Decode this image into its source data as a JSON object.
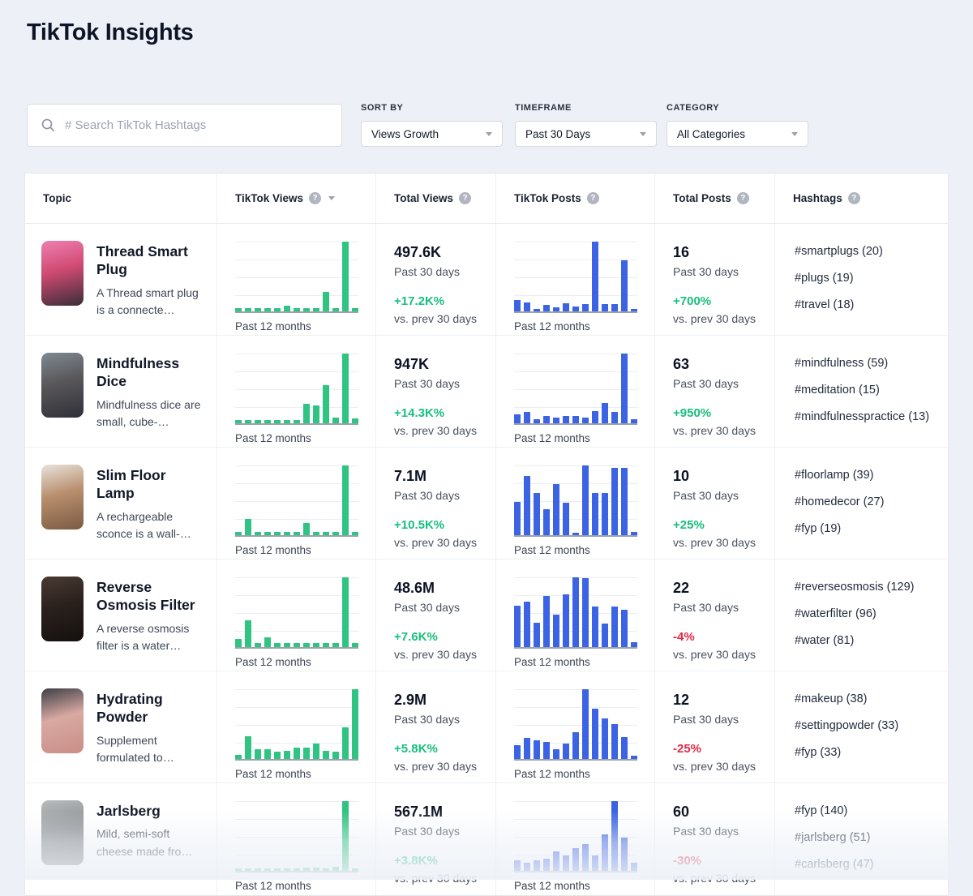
{
  "page": {
    "title": "TikTok Insights"
  },
  "search": {
    "placeholder": "# Search TikTok Hashtags"
  },
  "filters": {
    "sort_by": {
      "label": "SORT BY",
      "value": "Views Growth"
    },
    "timeframe": {
      "label": "TIMEFRAME",
      "value": "Past 30 Days"
    },
    "category": {
      "label": "CATEGORY",
      "value": "All Categories"
    }
  },
  "colors": {
    "views_bar_green": "#2fc481",
    "posts_bar_blue": "#3b63e3",
    "trend_up": "#17bf7d",
    "trend_down": "#e02b44"
  },
  "table": {
    "columns": [
      {
        "label": "Topic"
      },
      {
        "label": "TikTok Views"
      },
      {
        "label": "Total Views"
      },
      {
        "label": "TikTok Posts"
      },
      {
        "label": "Total Posts"
      },
      {
        "label": "Hashtags"
      }
    ],
    "chart_caption": "Past 12 months",
    "period_label": "Past 30 days",
    "vs_label": "vs. prev 30 days",
    "rows": [
      {
        "topic": {
          "title": "Thread Smart Plug",
          "description": "A Thread smart plug is a connecte…"
        },
        "thumb": [
          "#ee7fb1",
          "#d04a72",
          "#3a2d38"
        ],
        "views_chart": [
          5,
          5,
          5,
          5,
          5,
          8,
          5,
          5,
          5,
          28,
          5,
          100,
          5
        ],
        "total_views": {
          "value": "497.6K",
          "change": "+17.2K%",
          "trend": "up"
        },
        "posts_chart": [
          16,
          13,
          4,
          9,
          6,
          12,
          7,
          10,
          100,
          10,
          11,
          73,
          4
        ],
        "total_posts": {
          "value": "16",
          "change": "+700%",
          "trend": "up"
        },
        "hashtags": [
          {
            "tag": "#smartplugs",
            "count": "20"
          },
          {
            "tag": "#plugs",
            "count": "19"
          },
          {
            "tag": "#travel",
            "count": "18"
          }
        ]
      },
      {
        "topic": {
          "title": "Mindfulness Dice",
          "description": "Mindfulness dice are small, cube-…"
        },
        "thumb": [
          "#7e8a92",
          "#59575a",
          "#2f3038"
        ],
        "views_chart": [
          5,
          5,
          5,
          5,
          5,
          5,
          5,
          28,
          26,
          55,
          8,
          100,
          7
        ],
        "total_views": {
          "value": "947K",
          "change": "+14.3K%",
          "trend": "up"
        },
        "posts_chart": [
          13,
          16,
          6,
          11,
          8,
          10,
          10,
          8,
          18,
          29,
          16,
          100,
          6
        ],
        "total_posts": {
          "value": "63",
          "change": "+950%",
          "trend": "up"
        },
        "hashtags": [
          {
            "tag": "#mindfulness",
            "count": "59"
          },
          {
            "tag": "#meditation",
            "count": "15"
          },
          {
            "tag": "#mindfulnesspractice",
            "count": "13"
          }
        ]
      },
      {
        "topic": {
          "title": "Slim Floor Lamp",
          "description": "A rechargeable sconce is a wall-…"
        },
        "thumb": [
          "#e8e3dc",
          "#b98f6e",
          "#7b5a43"
        ],
        "views_chart": [
          5,
          23,
          5,
          5,
          5,
          5,
          5,
          17,
          5,
          5,
          5,
          100,
          5
        ],
        "total_views": {
          "value": "7.1M",
          "change": "+10.5K%",
          "trend": "up"
        },
        "posts_chart": [
          48,
          85,
          60,
          37,
          73,
          47,
          4,
          100,
          60,
          60,
          97,
          97,
          5
        ],
        "total_posts": {
          "value": "10",
          "change": "+25%",
          "trend": "up"
        },
        "hashtags": [
          {
            "tag": "#floorlamp",
            "count": "39"
          },
          {
            "tag": "#homedecor",
            "count": "27"
          },
          {
            "tag": "#fyp",
            "count": "19"
          }
        ]
      },
      {
        "topic": {
          "title": "Reverse Osmosis Filter",
          "description": "A reverse osmosis filter is a water…"
        },
        "thumb": [
          "#4a3a33",
          "#2a211d",
          "#15100e"
        ],
        "views_chart": [
          12,
          38,
          6,
          14,
          6,
          6,
          6,
          6,
          6,
          6,
          6,
          100,
          6
        ],
        "total_views": {
          "value": "48.6M",
          "change": "+7.6K%",
          "trend": "up"
        },
        "posts_chart": [
          59,
          65,
          35,
          73,
          46,
          76,
          100,
          99,
          58,
          34,
          58,
          54,
          7
        ],
        "total_posts": {
          "value": "22",
          "change": "-4%",
          "trend": "down"
        },
        "hashtags": [
          {
            "tag": "#reverseosmosis",
            "count": "129"
          },
          {
            "tag": "#waterfilter",
            "count": "96"
          },
          {
            "tag": "#water",
            "count": "81"
          }
        ]
      },
      {
        "topic": {
          "title": "Hydrating Powder",
          "description": "Supplement formulated to…"
        },
        "thumb": [
          "#3d3f46",
          "#d9a9a2",
          "#c98e87"
        ],
        "views_chart": [
          6,
          32,
          14,
          14,
          10,
          12,
          16,
          16,
          22,
          12,
          10,
          45,
          100
        ],
        "total_views": {
          "value": "2.9M",
          "change": "+5.8K%",
          "trend": "up"
        },
        "posts_chart": [
          20,
          30,
          27,
          24,
          14,
          22,
          38,
          100,
          72,
          58,
          50,
          31,
          5
        ],
        "total_posts": {
          "value": "12",
          "change": "-25%",
          "trend": "down"
        },
        "hashtags": [
          {
            "tag": "#makeup",
            "count": "38"
          },
          {
            "tag": "#settingpowder",
            "count": "33"
          },
          {
            "tag": "#fyp",
            "count": "33"
          }
        ]
      },
      {
        "topic": {
          "title": "Jarlsberg",
          "description": "Mild, semi-soft cheese made fro…"
        },
        "thumb": [
          "#b9bcbe",
          "#8e9194",
          "#6f7274"
        ],
        "views_chart": [
          4,
          4,
          4,
          4,
          4,
          4,
          4,
          5,
          5,
          4,
          6,
          100,
          4
        ],
        "total_views": {
          "value": "567.1M",
          "change": "+3.8K%",
          "trend": "up"
        },
        "posts_chart": [
          15,
          12,
          15,
          18,
          28,
          22,
          32,
          38,
          22,
          52,
          100,
          48,
          12
        ],
        "total_posts": {
          "value": "60",
          "change": "-30%",
          "trend": "down"
        },
        "hashtags": [
          {
            "tag": "#fyp",
            "count": "140"
          },
          {
            "tag": "#jarlsberg",
            "count": "51"
          },
          {
            "tag": "#carlsberg",
            "count": "47"
          }
        ]
      }
    ]
  }
}
